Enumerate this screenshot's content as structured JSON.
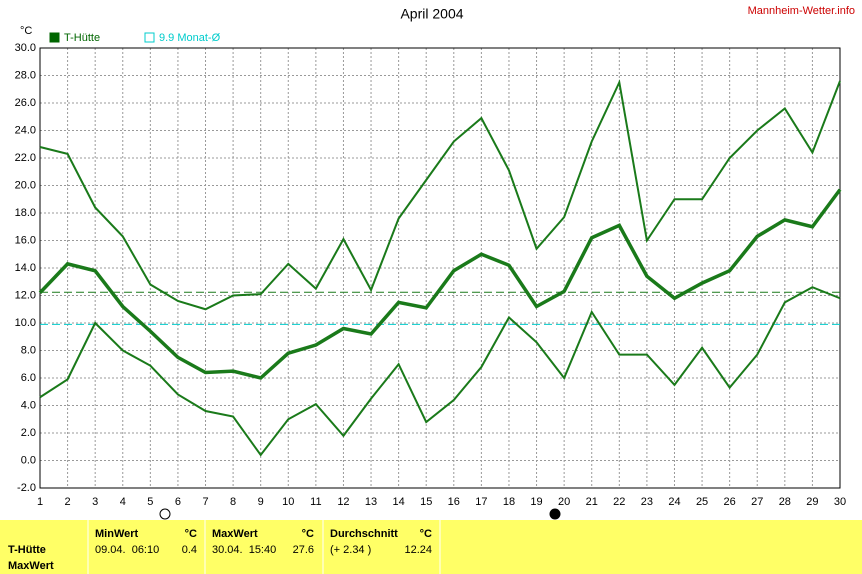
{
  "chart_data": {
    "type": "line",
    "title": "April 2004",
    "source": "Mannheim-Wetter.info",
    "y_unit": "°C",
    "legend": [
      {
        "label": "T-Hütte",
        "color": "#006600",
        "style": "filled"
      },
      {
        "label": "9.9 Monat-Ø",
        "color": "#00cccc",
        "style": "outline"
      }
    ],
    "x": [
      1,
      2,
      3,
      4,
      5,
      6,
      7,
      8,
      9,
      10,
      11,
      12,
      13,
      14,
      15,
      16,
      17,
      18,
      19,
      20,
      21,
      22,
      23,
      24,
      25,
      26,
      27,
      28,
      29,
      30
    ],
    "xlim": [
      1,
      30
    ],
    "xticks": [
      1,
      2,
      3,
      4,
      5,
      6,
      7,
      8,
      9,
      10,
      11,
      12,
      13,
      14,
      15,
      16,
      17,
      18,
      19,
      20,
      21,
      22,
      23,
      24,
      25,
      26,
      27,
      28,
      29,
      30
    ],
    "ylim": [
      -2,
      30
    ],
    "yticks": [
      {
        "value": -2,
        "label": "-2.0"
      },
      {
        "value": 0,
        "label": "0.0"
      },
      {
        "value": 2,
        "label": "2.0"
      },
      {
        "value": 4,
        "label": "4.0"
      },
      {
        "value": 6,
        "label": "6.0"
      },
      {
        "value": 8,
        "label": "8.0"
      },
      {
        "value": 10,
        "label": "10.0"
      },
      {
        "value": 12,
        "label": "12.0"
      },
      {
        "value": 14,
        "label": "14.0"
      },
      {
        "value": 16,
        "label": "16.0"
      },
      {
        "value": 18,
        "label": "18.0"
      },
      {
        "value": 20,
        "label": "20.0"
      },
      {
        "value": 22,
        "label": "22.0"
      },
      {
        "value": 24,
        "label": "24.0"
      },
      {
        "value": 26,
        "label": "26.0"
      },
      {
        "value": 28,
        "label": "28.0"
      },
      {
        "value": 30,
        "label": "30.0"
      }
    ],
    "grid": true,
    "series": [
      {
        "color": "#1a7a1a",
        "line_width": 2,
        "values": [
          22.8,
          22.3,
          18.4,
          16.3,
          12.8,
          11.6,
          11.0,
          12.0,
          12.1,
          14.3,
          12.5,
          16.1,
          12.4,
          17.6,
          20.4,
          23.2,
          24.9,
          21.1,
          15.4,
          17.7,
          23.2,
          27.5,
          16.0,
          19.0,
          19.0,
          22.0,
          24.0,
          25.6,
          22.4,
          27.6
        ]
      },
      {
        "color": "#1a7a1a",
        "line_width": 3.5,
        "values": [
          12.2,
          14.3,
          13.8,
          11.2,
          9.4,
          7.5,
          6.4,
          6.5,
          6.0,
          7.8,
          8.4,
          9.6,
          9.2,
          11.5,
          11.1,
          13.8,
          15.0,
          14.2,
          11.2,
          12.3,
          16.2,
          17.1,
          13.4,
          11.8,
          12.9,
          13.8,
          16.3,
          17.5,
          17.0,
          19.7
        ]
      },
      {
        "color": "#1a7a1a",
        "line_width": 2,
        "values": [
          4.6,
          5.9,
          10.0,
          8.0,
          6.9,
          4.8,
          3.6,
          3.2,
          0.4,
          3.0,
          4.1,
          1.8,
          4.5,
          7.0,
          2.8,
          4.4,
          6.8,
          10.4,
          8.6,
          6.0,
          10.8,
          7.7,
          7.7,
          5.5,
          8.2,
          5.3,
          7.7,
          11.5,
          12.6,
          11.8
        ]
      }
    ],
    "reference_lines": [
      {
        "value": 12.24,
        "color": "#1a7a1a"
      },
      {
        "value": 9.9,
        "color": "#00cccc"
      }
    ]
  },
  "table": {
    "row_labels": [
      "T-Hütte",
      "MaxWert"
    ],
    "columns": [
      {
        "title": "MinWert",
        "unit": "°C",
        "when": "09.04.  06:10",
        "value": "0.4"
      },
      {
        "title": "MaxWert",
        "unit": "°C",
        "when": "30.04.  15:40",
        "value": "27.6"
      },
      {
        "title": "Durchschnitt",
        "unit": "°C",
        "when": "(+ 2.34 )",
        "value": "12.24"
      }
    ]
  }
}
